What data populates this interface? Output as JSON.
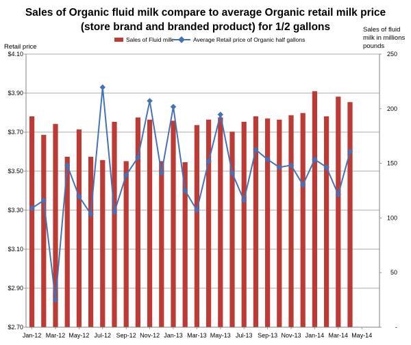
{
  "chart_data": {
    "type": "bar+line",
    "title": [
      "Sales of Organic fluid milk compare to average Organic retail milk price",
      "(store brand and branded product) for 1/2 gallons"
    ],
    "ylabel_left": "Retail price",
    "ylabel_right": [
      "Sales of fluid",
      "milk in millions",
      "pounds"
    ],
    "left_axis": {
      "min": 2.7,
      "max": 4.1,
      "step": 0.2,
      "tick_labels": [
        "$2.70",
        "$2.90",
        "$3.10",
        "$3.30",
        "$3.50",
        "$3.70",
        "$3.90",
        "$4.10"
      ]
    },
    "right_axis": {
      "min": 0,
      "max": 250,
      "step": 50,
      "tick_labels": [
        "-",
        "50",
        "100",
        "150",
        "200",
        "250"
      ]
    },
    "x_tick_labels": [
      "Jan-12",
      "Mar-12",
      "May-12",
      "Jul-12",
      "Sep-12",
      "Nov-12",
      "Jan-13",
      "Mar-13",
      "May-13",
      "Jul-13",
      "Sep-13",
      "Nov-13",
      "Jan-14",
      "Mar-14",
      "May-14"
    ],
    "months": [
      "Jan-12",
      "Feb-12",
      "Mar-12",
      "Apr-12",
      "May-12",
      "Jun-12",
      "Jul-12",
      "Aug-12",
      "Sep-12",
      "Oct-12",
      "Nov-12",
      "Dec-12",
      "Jan-13",
      "Feb-13",
      "Mar-13",
      "Apr-13",
      "May-13",
      "Jun-13",
      "Jul-13",
      "Aug-13",
      "Sep-13",
      "Oct-13",
      "Nov-13",
      "Dec-13",
      "Jan-14",
      "Feb-14",
      "Mar-14",
      "Apr-14"
    ],
    "series": [
      {
        "name": "Sales of Fluid milk",
        "type": "bar",
        "axis": "right",
        "color": "#be3a34",
        "values": [
          193,
          176,
          186,
          156,
          181,
          156,
          153,
          188,
          152,
          192,
          190,
          152,
          189,
          151,
          185,
          190,
          192,
          179,
          188,
          193,
          191,
          190,
          194,
          196,
          216,
          193,
          211,
          206
        ]
      },
      {
        "name": "Average Retail price of Organic half gallons",
        "type": "line",
        "axis": "left",
        "color": "#4472b8",
        "values": [
          3.31,
          3.35,
          2.84,
          3.53,
          3.37,
          3.28,
          3.93,
          3.29,
          3.48,
          3.57,
          3.86,
          3.49,
          3.83,
          3.4,
          3.3,
          3.55,
          3.79,
          3.49,
          3.35,
          3.61,
          3.56,
          3.52,
          3.53,
          3.43,
          3.56,
          3.52,
          3.38,
          3.6
        ]
      }
    ],
    "legend": {
      "position": "top"
    }
  }
}
